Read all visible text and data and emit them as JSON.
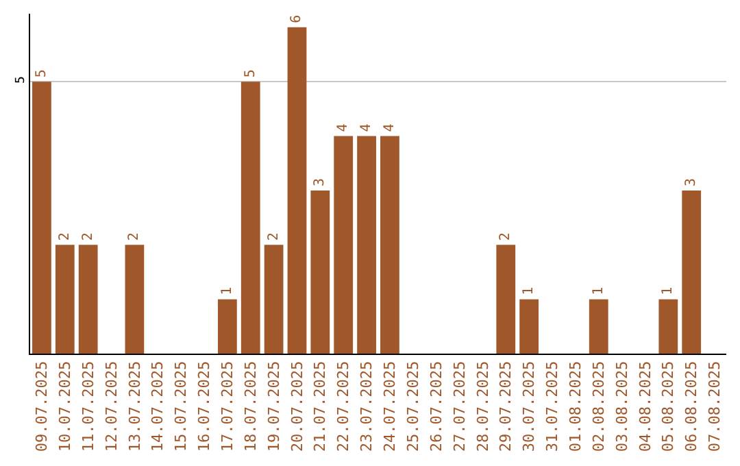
{
  "chart_data": {
    "type": "bar",
    "categories": [
      "09.07.2025",
      "10.07.2025",
      "11.07.2025",
      "12.07.2025",
      "13.07.2025",
      "14.07.2025",
      "15.07.2025",
      "16.07.2025",
      "17.07.2025",
      "18.07.2025",
      "19.07.2025",
      "20.07.2025",
      "21.07.2025",
      "22.07.2025",
      "23.07.2025",
      "24.07.2025",
      "25.07.2025",
      "26.07.2025",
      "27.07.2025",
      "28.07.2025",
      "29.07.2025",
      "30.07.2025",
      "31.07.2025",
      "01.08.2025",
      "02.08.2025",
      "03.08.2025",
      "04.08.2025",
      "05.08.2025",
      "06.08.2025",
      "07.08.2025"
    ],
    "values": [
      5,
      2,
      2,
      0,
      2,
      0,
      0,
      0,
      1,
      5,
      2,
      6,
      3,
      4,
      4,
      4,
      0,
      0,
      0,
      0,
      2,
      1,
      0,
      0,
      1,
      0,
      0,
      1,
      3,
      0
    ],
    "value_labels": [
      "5",
      "2",
      "2",
      null,
      "2",
      null,
      null,
      null,
      "1",
      "5",
      "2",
      "6",
      "3",
      "4",
      "4",
      "4",
      null,
      null,
      null,
      null,
      "2",
      "1",
      null,
      null,
      "1",
      null,
      null,
      "1",
      "3",
      null
    ],
    "color": "#a0572a",
    "ylim": [
      0,
      6.25
    ],
    "yticks": [
      5
    ],
    "grid": "y",
    "legend": false
  }
}
